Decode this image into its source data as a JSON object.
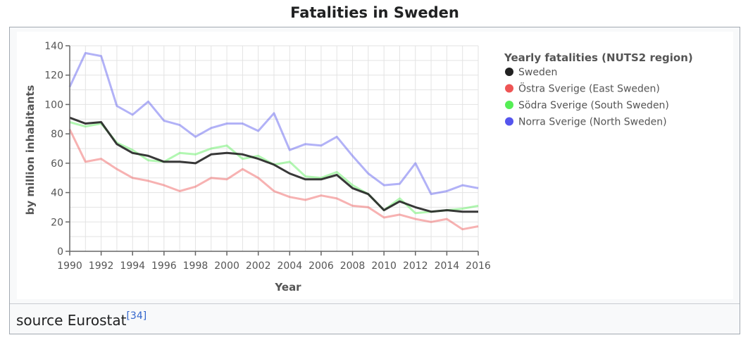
{
  "title": "Fatalities in Sweden",
  "caption": {
    "text": "source Eurostat",
    "ref": "[34]"
  },
  "chart_data": {
    "type": "line",
    "xlabel": "Year",
    "ylabel": "by million inhabitants",
    "xlim": [
      1990,
      2016
    ],
    "ylim": [
      0,
      140
    ],
    "x_ticks": [
      "1990",
      "1992",
      "1994",
      "1996",
      "1998",
      "2000",
      "2002",
      "2004",
      "2006",
      "2008",
      "2010",
      "2012",
      "2014",
      "2016"
    ],
    "y_ticks": [
      "0",
      "20",
      "40",
      "60",
      "80",
      "100",
      "120",
      "140"
    ],
    "grid": true,
    "legend_title": "Yearly fatalities (NUTS2 region)",
    "legend_position": "right",
    "x": [
      1990,
      1991,
      1992,
      1993,
      1994,
      1995,
      1996,
      1997,
      1998,
      1999,
      2000,
      2001,
      2002,
      2003,
      2004,
      2005,
      2006,
      2007,
      2008,
      2009,
      2010,
      2011,
      2012,
      2013,
      2014,
      2015,
      2016
    ],
    "series": [
      {
        "name": "Östra Sverige (East Sweden)",
        "color": "#ee5555",
        "opacity": 0.45,
        "values": [
          83,
          61,
          63,
          56,
          50,
          48,
          45,
          41,
          44,
          50,
          49,
          56,
          50,
          41,
          37,
          35,
          38,
          36,
          31,
          30,
          23,
          25,
          22,
          20,
          22,
          15,
          17
        ]
      },
      {
        "name": "Södra Sverige (South Sweden)",
        "color": "#55ee55",
        "opacity": 0.45,
        "values": [
          88,
          85,
          87,
          74,
          69,
          62,
          61,
          67,
          66,
          70,
          72,
          63,
          65,
          59,
          61,
          51,
          50,
          54,
          45,
          39,
          28,
          36,
          26,
          27,
          28,
          29,
          31
        ]
      },
      {
        "name": "Norra Sverige (North Sweden)",
        "color": "#5555ee",
        "opacity": 0.45,
        "values": [
          112,
          135,
          133,
          99,
          93,
          102,
          89,
          86,
          78,
          84,
          87,
          87,
          82,
          94,
          69,
          73,
          72,
          78,
          65,
          53,
          45,
          46,
          60,
          39,
          41,
          45,
          43
        ]
      },
      {
        "name": "Sweden",
        "color": "#222222",
        "opacity": 0.9,
        "values": [
          91,
          87,
          88,
          73,
          67,
          65,
          61,
          61,
          60,
          66,
          67,
          66,
          63,
          59,
          53,
          49,
          49,
          52,
          43,
          39,
          28,
          34,
          30,
          27,
          28,
          27,
          27
        ]
      }
    ],
    "legend_order": [
      "Sweden",
      "Östra Sverige (East Sweden)",
      "Södra Sverige (South Sweden)",
      "Norra Sverige (North Sweden)"
    ],
    "legend_colors": [
      "#222222",
      "#ee5555",
      "#55ee55",
      "#5555ee"
    ]
  }
}
